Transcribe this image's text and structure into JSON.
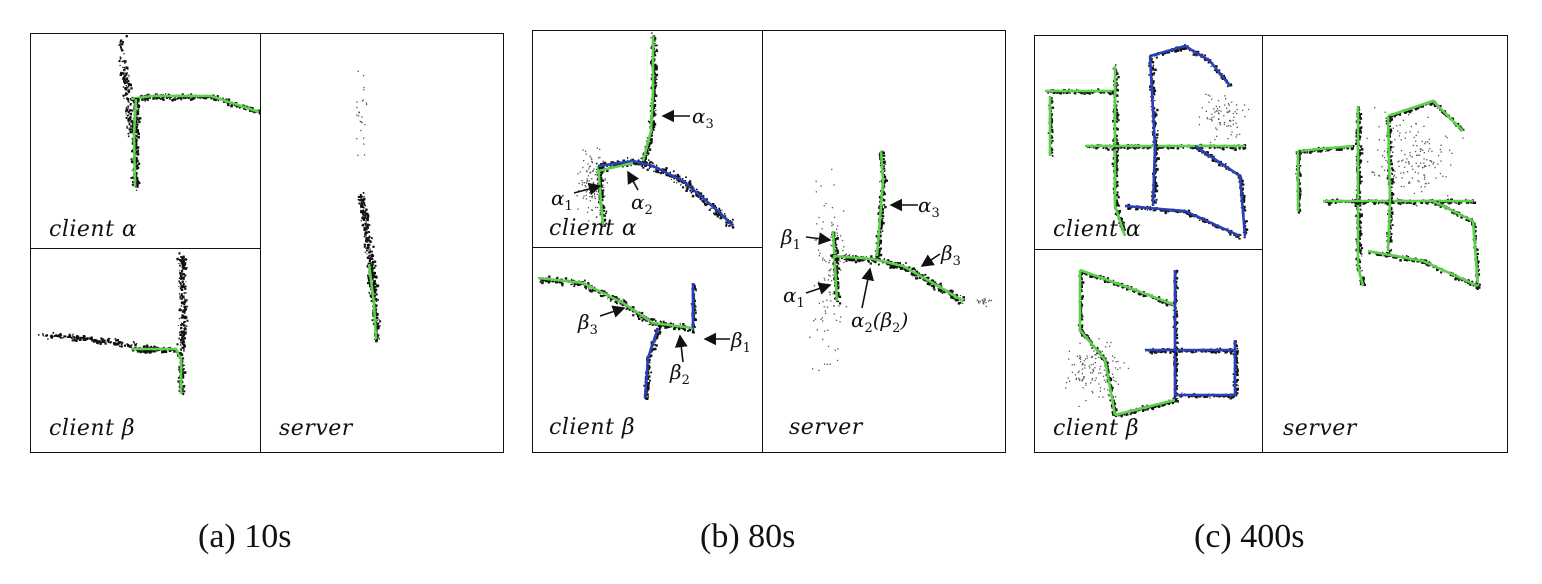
{
  "figures": {
    "a": {
      "caption": "(a) 10s",
      "client_alpha": "client α",
      "client_beta": "client β",
      "server": "server"
    },
    "b": {
      "caption": "(b) 80s",
      "client_alpha": "client α",
      "client_beta": "client β",
      "server": "server",
      "annotations": {
        "alpha1": "α",
        "alpha1_sub": "1",
        "alpha2": "α",
        "alpha2_sub": "2",
        "alpha3": "α",
        "alpha3_sub": "3",
        "beta1": "β",
        "beta1_sub": "1",
        "beta2": "β",
        "beta2_sub": "2",
        "beta3": "β",
        "beta3_sub": "3",
        "srv_alpha1": "α",
        "srv_alpha1_sub": "1",
        "srv_alpha2": "α",
        "srv_alpha2_sub": "2",
        "srv_beta_open": "(β",
        "srv_beta_sub": "2",
        "srv_beta_close": ")",
        "srv_alpha3": "α",
        "srv_alpha3_sub": "3",
        "srv_beta1": "β",
        "srv_beta1_sub": "1",
        "srv_beta3": "β",
        "srv_beta3_sub": "3"
      }
    },
    "c": {
      "caption": "(c) 400s",
      "client_alpha": "client α",
      "client_beta": "client β",
      "server": "server"
    }
  },
  "colors": {
    "trajectory_green": "#5cd14a",
    "trajectory_blue": "#2a3fb8",
    "points": "#111111"
  }
}
